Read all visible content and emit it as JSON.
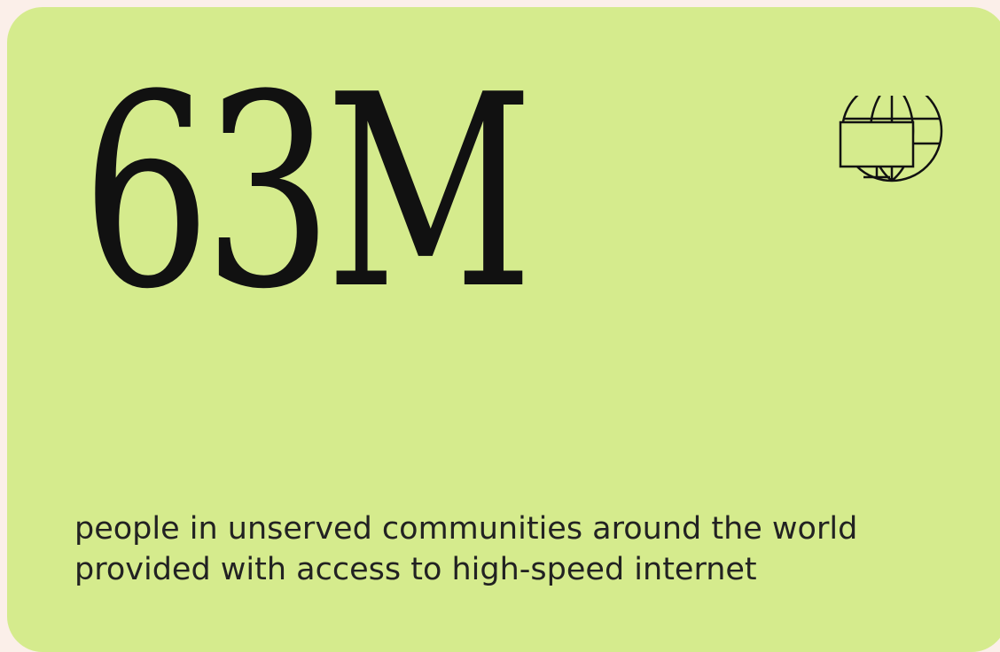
{
  "card": {
    "stat": "63M",
    "description": "people in unserved communities around the world provided with access to high-speed internet"
  }
}
